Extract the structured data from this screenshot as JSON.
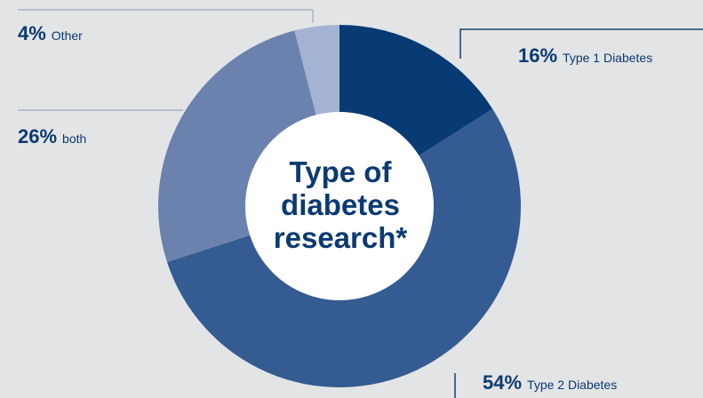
{
  "colors": {
    "background": "#e3e4e5",
    "text": "#0b3a73",
    "leader": "#a9b2c4",
    "leader_dark": "#1d3e6b",
    "hole": "#ffffff",
    "slices": [
      "#083b74",
      "#345b92",
      "#6a82ad",
      "#a4b3d3"
    ]
  },
  "chart_data": {
    "type": "pie",
    "title": "Type of diabetes research*",
    "title_lines": [
      "Type of",
      "diabetes",
      "research*"
    ],
    "donut": true,
    "slices": [
      {
        "label": "Type 1 Diabetes",
        "value": 16,
        "value_label": "16%"
      },
      {
        "label": "Type 2 Diabetes",
        "value": 54,
        "value_label": "54%"
      },
      {
        "label": "both",
        "value": 26,
        "value_label": "26%"
      },
      {
        "label": "Other",
        "value": 4,
        "value_label": "4%"
      }
    ]
  }
}
